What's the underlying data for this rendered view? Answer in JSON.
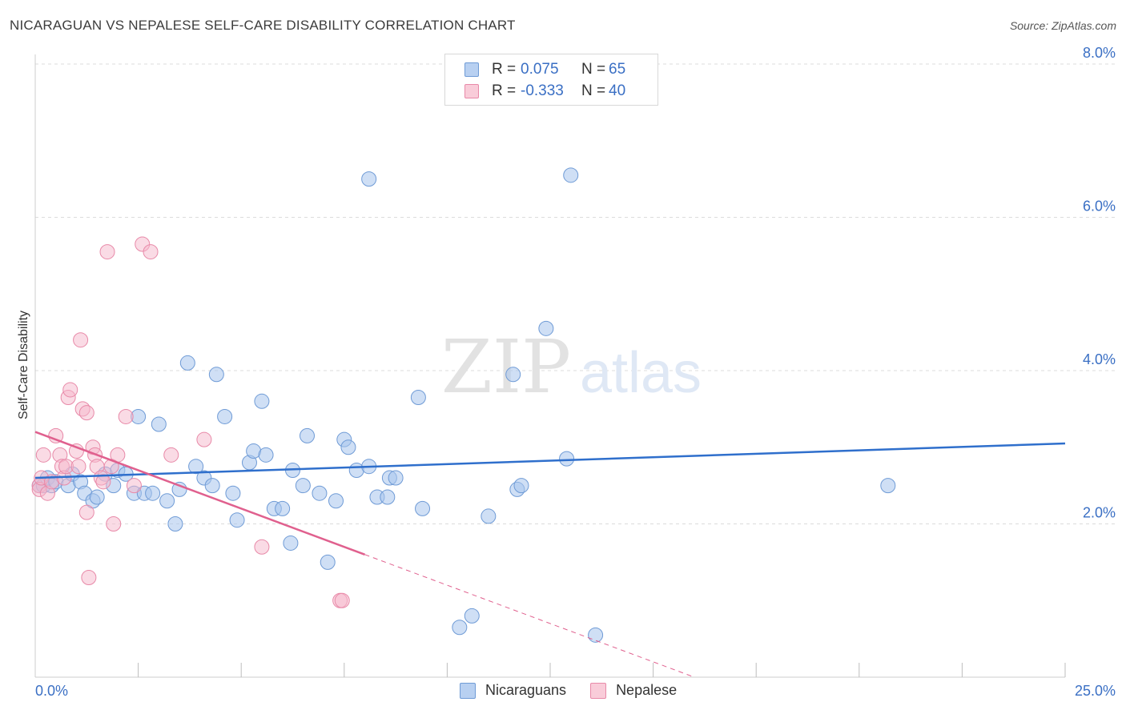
{
  "title": "NICARAGUAN VS NEPALESE SELF-CARE DISABILITY CORRELATION CHART",
  "source": "Source: ZipAtlas.com",
  "watermark": {
    "zip": "ZIP",
    "atlas": "atlas"
  },
  "legend_top": [
    {
      "r_label": "R =",
      "r_value": "0.075",
      "n_label": "N =",
      "n_value": "65"
    },
    {
      "r_label": "R =",
      "r_value": "-0.333",
      "n_label": "N =",
      "n_value": "40"
    }
  ],
  "legend_bottom": [
    "Nicaraguans",
    "Nepalese"
  ],
  "colors": {
    "nicaraguans_fill": "#a8c4ec",
    "nicaraguans_stroke": "#6f9bd6",
    "nicaraguans_line": "#2f6fcc",
    "nepalese_fill": "#f6b8cb",
    "nepalese_stroke": "#e889a8",
    "nepalese_line": "#e0608e",
    "axis_label": "#3a6fc4",
    "grid": "#dcdcdc"
  },
  "chart_data": {
    "type": "scatter",
    "title": "NICARAGUAN VS NEPALESE SELF-CARE DISABILITY CORRELATION CHART",
    "xlabel": "",
    "ylabel": "Self-Care Disability",
    "xlim": [
      0,
      25
    ],
    "ylim": [
      0,
      8
    ],
    "x_tick_labels": [
      "0.0%",
      "25.0%"
    ],
    "y_ticks": [
      2,
      4,
      6,
      8
    ],
    "y_tick_labels": [
      "2.0%",
      "4.0%",
      "6.0%",
      "8.0%"
    ],
    "grid": true,
    "legend_position": "bottom",
    "series": [
      {
        "name": "Nicaraguans",
        "points": [
          [
            0.1,
            2.5
          ],
          [
            0.2,
            2.5
          ],
          [
            0.3,
            2.6
          ],
          [
            0.4,
            2.5
          ],
          [
            0.5,
            2.55
          ],
          [
            0.8,
            2.5
          ],
          [
            0.9,
            2.65
          ],
          [
            1.1,
            2.55
          ],
          [
            1.2,
            2.4
          ],
          [
            1.4,
            2.3
          ],
          [
            1.5,
            2.35
          ],
          [
            1.7,
            2.65
          ],
          [
            1.9,
            2.5
          ],
          [
            2.0,
            2.7
          ],
          [
            2.2,
            2.65
          ],
          [
            2.4,
            2.4
          ],
          [
            2.5,
            3.4
          ],
          [
            2.65,
            2.4
          ],
          [
            2.85,
            2.4
          ],
          [
            3.0,
            3.3
          ],
          [
            3.2,
            2.3
          ],
          [
            3.4,
            2.0
          ],
          [
            3.5,
            2.45
          ],
          [
            3.7,
            4.1
          ],
          [
            3.9,
            2.75
          ],
          [
            4.1,
            2.6
          ],
          [
            4.3,
            2.5
          ],
          [
            4.4,
            3.95
          ],
          [
            4.6,
            3.4
          ],
          [
            4.8,
            2.4
          ],
          [
            4.9,
            2.05
          ],
          [
            5.2,
            2.8
          ],
          [
            5.3,
            2.95
          ],
          [
            5.5,
            3.6
          ],
          [
            5.6,
            2.9
          ],
          [
            5.8,
            2.2
          ],
          [
            6.0,
            2.2
          ],
          [
            6.2,
            1.75
          ],
          [
            6.25,
            2.7
          ],
          [
            6.5,
            2.5
          ],
          [
            6.6,
            3.15
          ],
          [
            6.9,
            2.4
          ],
          [
            7.1,
            1.5
          ],
          [
            7.3,
            2.3
          ],
          [
            7.5,
            3.1
          ],
          [
            7.6,
            3.0
          ],
          [
            7.8,
            2.7
          ],
          [
            8.1,
            2.75
          ],
          [
            8.1,
            6.5
          ],
          [
            8.3,
            2.35
          ],
          [
            8.55,
            2.35
          ],
          [
            8.6,
            2.6
          ],
          [
            8.75,
            2.6
          ],
          [
            9.3,
            3.65
          ],
          [
            9.4,
            2.2
          ],
          [
            10.3,
            0.65
          ],
          [
            10.6,
            0.8
          ],
          [
            11.0,
            2.1
          ],
          [
            11.6,
            3.95
          ],
          [
            11.7,
            2.45
          ],
          [
            11.8,
            2.5
          ],
          [
            12.4,
            4.55
          ],
          [
            12.9,
            2.85
          ],
          [
            13.0,
            6.55
          ],
          [
            13.6,
            0.55
          ],
          [
            20.7,
            2.5
          ]
        ],
        "trend": {
          "x": [
            0,
            25
          ],
          "y": [
            2.6,
            3.05
          ]
        }
      },
      {
        "name": "Nepalese",
        "points": [
          [
            0.1,
            2.5
          ],
          [
            0.1,
            2.45
          ],
          [
            0.15,
            2.6
          ],
          [
            0.2,
            2.9
          ],
          [
            0.3,
            2.4
          ],
          [
            0.4,
            2.55
          ],
          [
            0.5,
            3.15
          ],
          [
            0.6,
            2.9
          ],
          [
            0.65,
            2.75
          ],
          [
            0.7,
            2.6
          ],
          [
            0.75,
            2.75
          ],
          [
            0.8,
            3.65
          ],
          [
            0.85,
            3.75
          ],
          [
            1.0,
            2.95
          ],
          [
            1.05,
            2.75
          ],
          [
            1.1,
            4.4
          ],
          [
            1.15,
            3.5
          ],
          [
            1.25,
            2.15
          ],
          [
            1.25,
            3.45
          ],
          [
            1.3,
            1.3
          ],
          [
            1.4,
            3.0
          ],
          [
            1.45,
            2.9
          ],
          [
            1.5,
            2.75
          ],
          [
            1.6,
            2.6
          ],
          [
            1.65,
            2.55
          ],
          [
            1.75,
            5.55
          ],
          [
            1.85,
            2.75
          ],
          [
            1.9,
            2.0
          ],
          [
            2.0,
            2.9
          ],
          [
            2.2,
            3.4
          ],
          [
            2.4,
            2.5
          ],
          [
            2.6,
            5.65
          ],
          [
            2.8,
            5.55
          ],
          [
            3.3,
            2.9
          ],
          [
            4.1,
            3.1
          ],
          [
            5.5,
            1.7
          ],
          [
            7.4,
            1.0
          ],
          [
            7.45,
            1.0
          ]
        ],
        "trend": {
          "x": [
            0,
            8.0
          ],
          "y": [
            3.2,
            1.6
          ]
        },
        "trend_extrapolated": {
          "x": [
            8.0,
            16
          ],
          "y": [
            1.6,
            0.0
          ]
        }
      }
    ]
  }
}
